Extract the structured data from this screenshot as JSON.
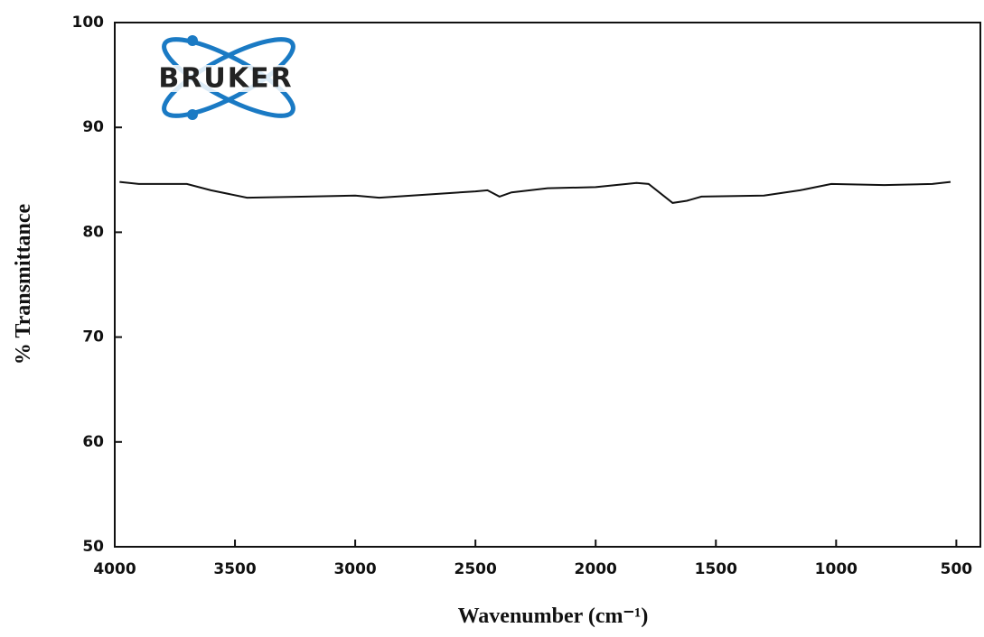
{
  "chart_data": {
    "type": "line",
    "xlabel": "Wavenumber (cm⁻¹)",
    "ylabel": "% Transmittance",
    "logo": "BRUKER",
    "x": [
      3980,
      3900,
      3700,
      3600,
      3450,
      3200,
      3000,
      2900,
      2700,
      2500,
      2450,
      2400,
      2350,
      2200,
      2000,
      1830,
      1780,
      1680,
      1620,
      1560,
      1300,
      1150,
      1020,
      800,
      600,
      524
    ],
    "values": [
      84.8,
      84.6,
      84.6,
      84.0,
      83.3,
      83.4,
      83.5,
      83.3,
      83.6,
      83.9,
      84.0,
      83.4,
      83.8,
      84.2,
      84.3,
      84.7,
      84.6,
      82.8,
      83.0,
      83.4,
      83.5,
      84.0,
      84.6,
      84.5,
      84.6,
      84.8
    ],
    "color": "#111111",
    "xlim": [
      4000,
      400
    ],
    "xticks": [
      4000,
      3500,
      3000,
      2500,
      2000,
      1500,
      1000,
      500
    ],
    "ylim": [
      50,
      100
    ],
    "yticks": [
      50,
      60,
      70,
      80,
      90,
      100
    ]
  }
}
